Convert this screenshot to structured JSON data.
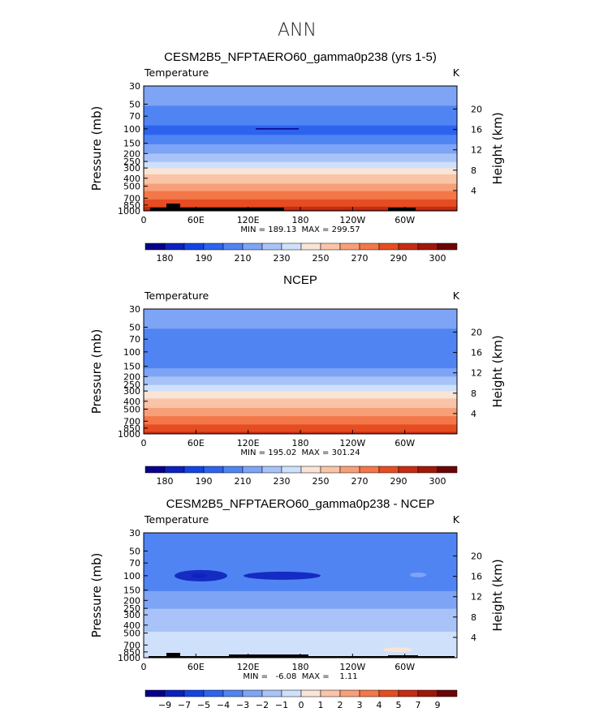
{
  "figure_title": "ANN",
  "chart_data": [
    {
      "type": "contour",
      "title": "CESM2B5_NFPTAERO60_gamma0p238 (yrs 1-5)",
      "variable": "Temperature",
      "units": "K",
      "ylabel_left": "Pressure (mb)",
      "ylabel_right": "Height (km)",
      "x_ticks": [
        "0",
        "60E",
        "120E",
        "180",
        "120W",
        "60W"
      ],
      "x_tick_values": [
        0,
        60,
        120,
        180,
        240,
        300
      ],
      "xlim": [
        0,
        360
      ],
      "p_ticks": [
        30,
        50,
        70,
        100,
        150,
        200,
        250,
        300,
        400,
        500,
        700,
        850,
        1000
      ],
      "height_ticks": [
        20,
        16,
        12,
        8,
        4
      ],
      "stats": "MIN = 189.13  MAX = 299.57",
      "levels": [
        180,
        185,
        190,
        200,
        210,
        220,
        230,
        240,
        250,
        260,
        270,
        280,
        290,
        295,
        300
      ],
      "colorbar_labels": [
        "180",
        "190",
        "210",
        "230",
        "250",
        "270",
        "290",
        "300"
      ],
      "profile": [
        [
          30,
          220
        ],
        [
          40,
          215
        ],
        [
          50,
          211
        ],
        [
          60,
          207
        ],
        [
          70,
          204
        ],
        [
          80,
          201
        ],
        [
          90,
          200
        ],
        [
          100,
          198
        ],
        [
          110,
          198
        ],
        [
          130,
          203
        ],
        [
          150,
          209
        ],
        [
          170,
          214
        ],
        [
          200,
          220
        ],
        [
          230,
          226
        ],
        [
          260,
          232
        ],
        [
          300,
          240
        ],
        [
          350,
          249
        ],
        [
          400,
          254
        ],
        [
          450,
          258
        ],
        [
          500,
          265
        ],
        [
          600,
          272
        ],
        [
          700,
          279
        ],
        [
          800,
          284
        ],
        [
          850,
          287
        ],
        [
          900,
          290
        ],
        [
          950,
          293
        ],
        [
          1000,
          297
        ]
      ]
    },
    {
      "type": "contour",
      "title": "NCEP",
      "variable": "Temperature",
      "units": "K",
      "ylabel_left": "Pressure (mb)",
      "ylabel_right": "Height (km)",
      "x_ticks": [
        "0",
        "60E",
        "120E",
        "180",
        "120W",
        "60W"
      ],
      "x_tick_values": [
        0,
        60,
        120,
        180,
        240,
        300
      ],
      "xlim": [
        0,
        360
      ],
      "p_ticks": [
        30,
        50,
        70,
        100,
        150,
        200,
        250,
        300,
        400,
        500,
        700,
        850,
        1000
      ],
      "height_ticks": [
        20,
        16,
        12,
        8,
        4
      ],
      "stats": "MIN = 195.02  MAX = 301.24",
      "levels": [
        180,
        185,
        190,
        200,
        210,
        220,
        230,
        240,
        250,
        260,
        270,
        280,
        290,
        295,
        300
      ],
      "colorbar_labels": [
        "180",
        "190",
        "210",
        "230",
        "250",
        "270",
        "290",
        "300"
      ],
      "profile": [
        [
          30,
          220
        ],
        [
          40,
          215
        ],
        [
          50,
          211
        ],
        [
          60,
          207
        ],
        [
          70,
          204
        ],
        [
          85,
          202
        ],
        [
          100,
          201
        ],
        [
          120,
          203
        ],
        [
          150,
          208
        ],
        [
          170,
          213
        ],
        [
          200,
          220
        ],
        [
          230,
          226
        ],
        [
          260,
          232
        ],
        [
          300,
          240
        ],
        [
          350,
          248
        ],
        [
          400,
          254
        ],
        [
          450,
          257
        ],
        [
          500,
          262
        ],
        [
          600,
          270
        ],
        [
          700,
          277
        ],
        [
          800,
          282
        ],
        [
          850,
          284
        ],
        [
          900,
          287
        ],
        [
          950,
          290
        ],
        [
          1000,
          294
        ]
      ]
    },
    {
      "type": "contour",
      "title": "CESM2B5_NFPTAERO60_gamma0p238 - NCEP",
      "variable": "Temperature",
      "units": "K",
      "ylabel_left": "Pressure (mb)",
      "ylabel_right": "Height (km)",
      "x_ticks": [
        "0",
        "60E",
        "120E",
        "180",
        "120W",
        "60W"
      ],
      "x_tick_values": [
        0,
        60,
        120,
        180,
        240,
        300
      ],
      "xlim": [
        0,
        360
      ],
      "p_ticks": [
        30,
        50,
        70,
        100,
        150,
        200,
        250,
        300,
        400,
        500,
        700,
        850,
        1000
      ],
      "height_ticks": [
        20,
        16,
        12,
        8,
        4
      ],
      "stats": "MIN =   -6.08  MAX =    1.11",
      "levels": [
        -9,
        -7,
        -5,
        -4,
        -3,
        -2,
        -1,
        0,
        1,
        2,
        3,
        4,
        5,
        7,
        9
      ],
      "colorbar_labels": [
        "-9",
        "-7",
        "-5",
        "-4",
        "-3",
        "-2",
        "-1",
        "0",
        "1",
        "2",
        "3",
        "4",
        "5",
        "7",
        "9"
      ],
      "profile": [
        [
          30,
          -3.5
        ],
        [
          50,
          -3.5
        ],
        [
          70,
          -3.4
        ],
        [
          85,
          -3.6
        ],
        [
          100,
          -3.8
        ],
        [
          120,
          -3.4
        ],
        [
          150,
          -3.1
        ],
        [
          170,
          -2.6
        ],
        [
          200,
          -2.5
        ],
        [
          230,
          -2.2
        ],
        [
          260,
          -1.9
        ],
        [
          300,
          -1.7
        ],
        [
          350,
          -1.6
        ],
        [
          400,
          -1.5
        ],
        [
          450,
          -1.2
        ],
        [
          500,
          -0.9
        ],
        [
          600,
          -0.4
        ],
        [
          700,
          -0.3
        ],
        [
          800,
          -0.3
        ],
        [
          900,
          -0.3
        ],
        [
          1000,
          -0.3
        ]
      ]
    }
  ],
  "colors": {
    "palette": [
      "#08008a",
      "#0d22bc",
      "#1345e2",
      "#2d63ee",
      "#5184f3",
      "#7ea4f5",
      "#a8c3f8",
      "#cfe0fb",
      "#f9e4d6",
      "#f9c4a7",
      "#f79f79",
      "#f37749",
      "#e64d22",
      "#c52c12",
      "#a0170b",
      "#6b0606"
    ]
  }
}
